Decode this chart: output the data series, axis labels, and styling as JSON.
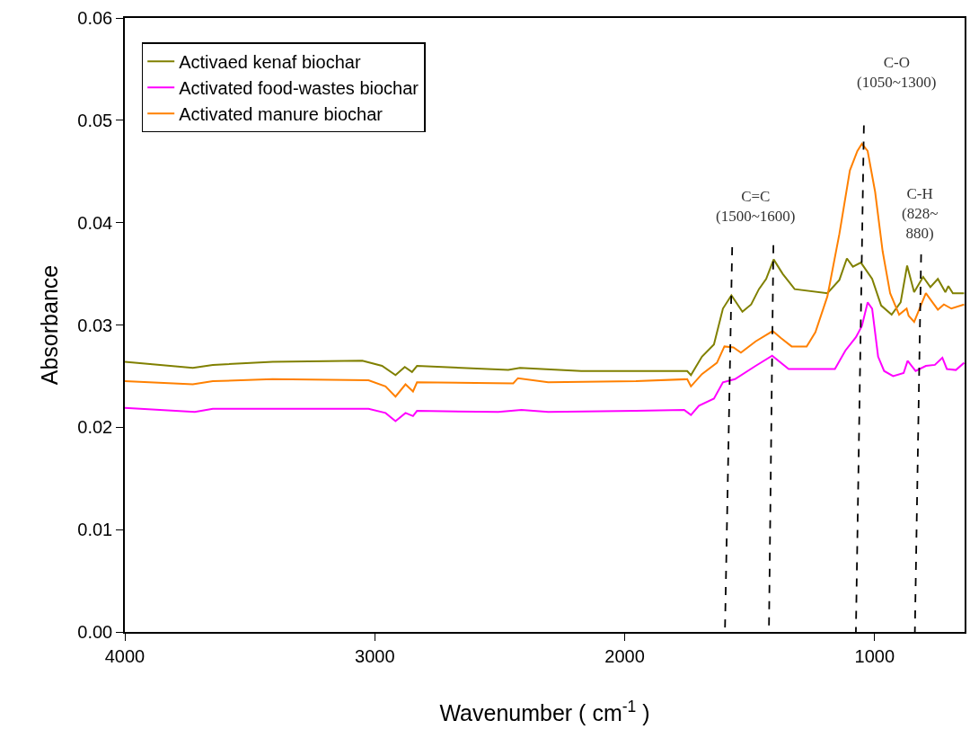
{
  "chart_data": {
    "type": "line",
    "xlabel": "Wavenumber ( cm$^{-1}$ )",
    "ylabel": "Absorbance",
    "xlim": [
      4000,
      640
    ],
    "xticks": [
      4000,
      3000,
      2000,
      1000
    ],
    "ylim": [
      0,
      0.06
    ],
    "yticks": [
      {
        "value": 0,
        "label": "0.00"
      },
      {
        "value": 0.01,
        "label": "0.01"
      },
      {
        "value": 0.02,
        "label": "0.02"
      },
      {
        "value": 0.03,
        "label": "0.03"
      },
      {
        "value": 0.04,
        "label": "0.04"
      },
      {
        "value": 0.05,
        "label": "0.05"
      },
      {
        "value": 0.06,
        "label": "0.06"
      }
    ],
    "legend": "top left",
    "marker": "none",
    "series": [
      {
        "name": "Activaed kenaf biochar",
        "color": "#808000",
        "x": [
          4000,
          3728,
          3648,
          3409,
          3050,
          2971,
          2917,
          2880,
          2851,
          2831,
          2466,
          2419,
          2174,
          1955,
          1750,
          1735,
          1691,
          1643,
          1607,
          1573,
          1529,
          1494,
          1463,
          1434,
          1404,
          1368,
          1320,
          1189,
          1141,
          1111,
          1087,
          1055,
          1010,
          974,
          932,
          896,
          870,
          842,
          806,
          777,
          747,
          717,
          705,
          687,
          642
        ],
        "values": [
          0.0264,
          0.0258,
          0.0261,
          0.0264,
          0.0265,
          0.026,
          0.0251,
          0.0259,
          0.0254,
          0.026,
          0.0256,
          0.0258,
          0.0255,
          0.0255,
          0.0255,
          0.0251,
          0.0269,
          0.0281,
          0.0316,
          0.0329,
          0.0313,
          0.032,
          0.0335,
          0.0345,
          0.0364,
          0.035,
          0.0335,
          0.0331,
          0.0344,
          0.0365,
          0.0357,
          0.0361,
          0.0345,
          0.0319,
          0.031,
          0.0322,
          0.0358,
          0.0332,
          0.0347,
          0.0337,
          0.0345,
          0.0332,
          0.0338,
          0.0331,
          0.0331
        ]
      },
      {
        "name": "Activated food-wastes biochar",
        "color": "#ff00ff",
        "x": [
          4000,
          3720,
          3648,
          3025,
          2957,
          2917,
          2877,
          2847,
          2831,
          2506,
          2413,
          2306,
          1955,
          1762,
          1735,
          1703,
          1643,
          1607,
          1559,
          1476,
          1410,
          1344,
          1159,
          1117,
          1075,
          1051,
          1028,
          1010,
          986,
          962,
          926,
          884,
          868,
          836,
          795,
          759,
          729,
          711,
          675,
          642
        ],
        "values": [
          0.0219,
          0.0215,
          0.0218,
          0.0218,
          0.0214,
          0.0206,
          0.0214,
          0.0211,
          0.0216,
          0.0215,
          0.0217,
          0.0215,
          0.0216,
          0.0217,
          0.0212,
          0.0221,
          0.0228,
          0.0244,
          0.0247,
          0.026,
          0.027,
          0.0257,
          0.0257,
          0.0275,
          0.0288,
          0.0299,
          0.0322,
          0.0316,
          0.0269,
          0.0255,
          0.025,
          0.0253,
          0.0265,
          0.0255,
          0.026,
          0.0261,
          0.0268,
          0.0257,
          0.0256,
          0.0263
        ]
      },
      {
        "name": "Activated manure biochar",
        "color": "#ff8000",
        "x": [
          4000,
          3728,
          3648,
          3409,
          3025,
          2957,
          2917,
          2877,
          2847,
          2831,
          2446,
          2427,
          2306,
          1955,
          1750,
          1735,
          1691,
          1631,
          1601,
          1565,
          1535,
          1476,
          1408,
          1374,
          1332,
          1272,
          1237,
          1189,
          1141,
          1099,
          1069,
          1051,
          1028,
          998,
          968,
          938,
          902,
          872,
          864,
          842,
          795,
          771,
          747,
          723,
          693,
          642
        ],
        "values": [
          0.0245,
          0.0242,
          0.0245,
          0.0247,
          0.0246,
          0.024,
          0.023,
          0.0242,
          0.0235,
          0.0244,
          0.0243,
          0.0248,
          0.0244,
          0.0245,
          0.0247,
          0.024,
          0.0252,
          0.0263,
          0.0279,
          0.0278,
          0.0273,
          0.0284,
          0.0294,
          0.0287,
          0.0279,
          0.0279,
          0.0293,
          0.0328,
          0.0389,
          0.0451,
          0.047,
          0.0477,
          0.047,
          0.043,
          0.0372,
          0.0331,
          0.031,
          0.0316,
          0.0309,
          0.0303,
          0.0331,
          0.0323,
          0.0315,
          0.032,
          0.0316,
          0.032
        ]
      },
      {
        "color": "#000000",
        "line_style": "dashed",
        "x": [
          1570,
          1599
        ],
        "values": [
          0.0376,
          0
        ]
      },
      {
        "color": "#000000",
        "line_style": "dashed",
        "x": [
          1405,
          1423
        ],
        "values": [
          0.0378,
          0
        ]
      },
      {
        "color": "#000000",
        "line_style": "dashed",
        "x": [
          1043,
          1075
        ],
        "values": [
          0.0495,
          0
        ]
      },
      {
        "color": "#000000",
        "line_style": "dashed",
        "x": [
          814,
          839
        ],
        "values": [
          0.0369,
          0
        ]
      }
    ],
    "annotations": [
      "C=C\n(1500~1600)",
      "C-O\n(1050~1300)",
      "C-H\n(828~\n880)"
    ]
  }
}
